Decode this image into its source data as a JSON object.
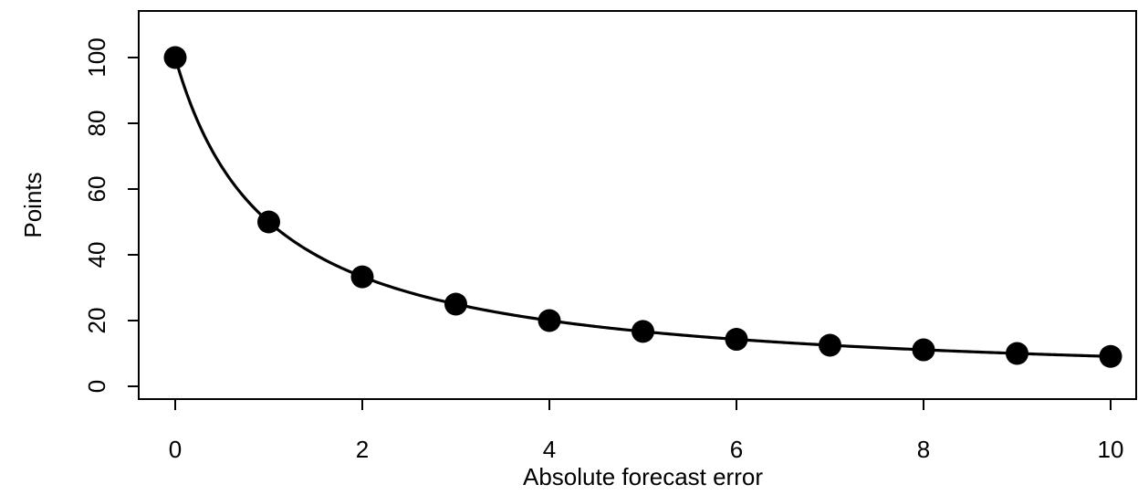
{
  "chart_data": {
    "type": "scatter",
    "title": "",
    "xlabel": "Absolute forecast error",
    "ylabel": "Points",
    "xlim": [
      -0.4,
      10.3
    ],
    "ylim": [
      -4,
      114
    ],
    "x_ticks": [
      0,
      2,
      4,
      6,
      8,
      10
    ],
    "y_ticks": [
      0,
      20,
      40,
      60,
      80,
      100
    ],
    "x_tick_labels": [
      "0",
      "2",
      "4",
      "6",
      "8",
      "10"
    ],
    "y_tick_labels": [
      "0",
      "20",
      "40",
      "60",
      "80",
      "100"
    ],
    "grid": false,
    "legend": "none",
    "curve": "y = 100 / (1 + x)",
    "series": [
      {
        "x": [
          0,
          1,
          2,
          3,
          4,
          5,
          6,
          7,
          8,
          9,
          10
        ],
        "values": [
          100,
          50,
          33.3,
          25,
          20,
          16.7,
          14.3,
          12.5,
          11.1,
          10,
          9.1
        ]
      }
    ],
    "colors": {
      "line": "#000000",
      "points": "#000000"
    }
  }
}
